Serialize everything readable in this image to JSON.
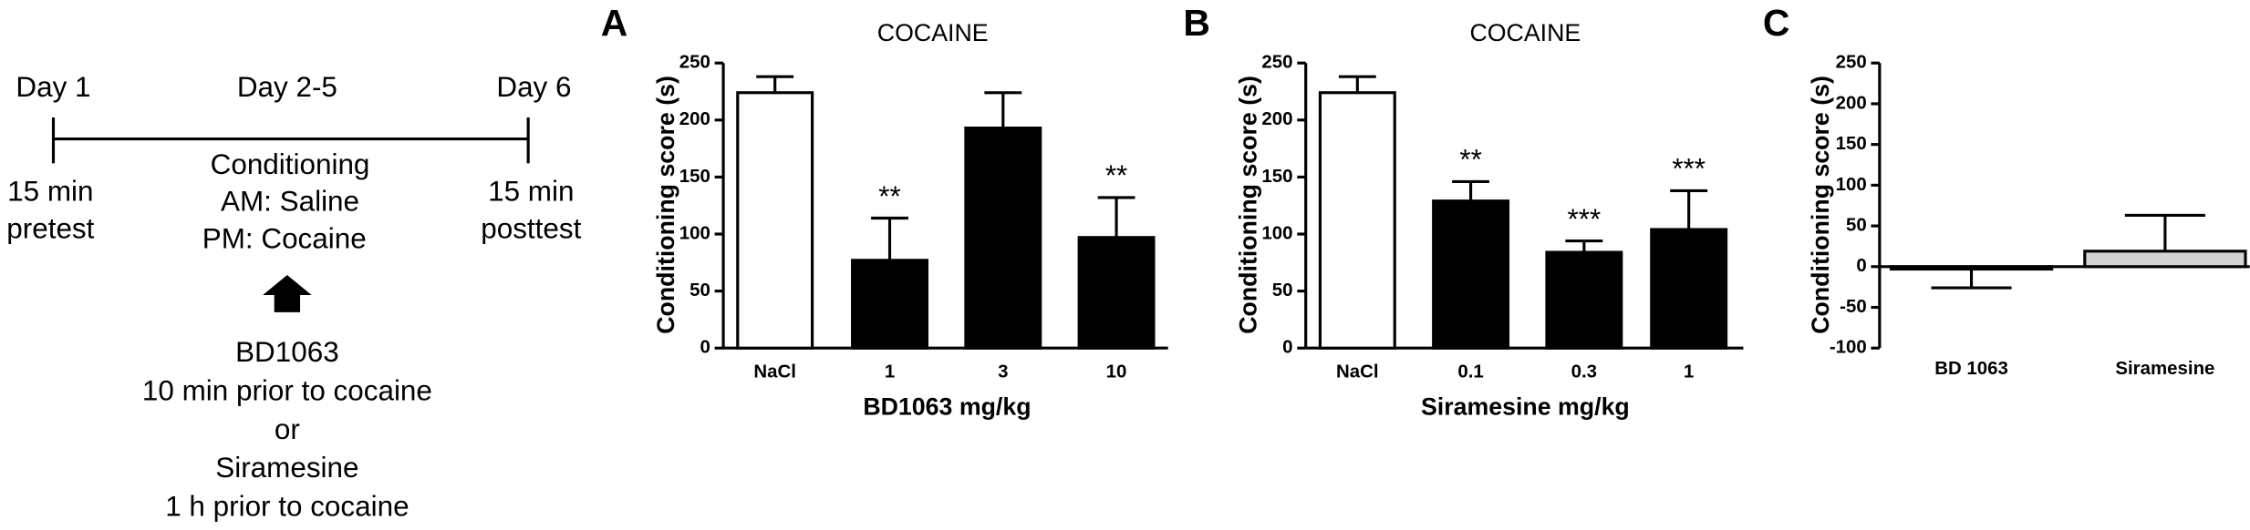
{
  "diagram": {
    "day1": "Day 1",
    "day25": "Day 2-5",
    "day6": "Day 6",
    "pre": [
      "15 min",
      "pretest"
    ],
    "conditioning": [
      "Conditioning",
      "AM: Saline",
      "PM: Cocaine"
    ],
    "post": [
      "15 min",
      "posttest"
    ],
    "drugs": [
      "BD1063",
      "10 min prior to cocaine",
      "or",
      "Siramesine",
      "1 h prior to cocaine"
    ]
  },
  "chart_data": [
    {
      "type": "bar",
      "panel": "A",
      "title": "COCAINE",
      "y_label": "Conditioning score (s)",
      "x_label": "BD1063 mg/kg",
      "categories": [
        "NaCl",
        "1",
        "3",
        "10"
      ],
      "values": [
        224,
        77,
        193,
        97
      ],
      "errors": [
        14,
        37,
        31,
        35
      ],
      "colors": [
        "#ffffff",
        "#000000",
        "#000000",
        "#000000"
      ],
      "significance": [
        null,
        "**",
        null,
        "**"
      ],
      "ylim": [
        0,
        250
      ],
      "yticks": [
        0,
        50,
        100,
        150,
        200,
        250
      ],
      "grid": false
    },
    {
      "type": "bar",
      "panel": "B",
      "title": "COCAINE",
      "y_label": "Conditioning score (s)",
      "x_label": "Siramesine mg/kg",
      "categories": [
        "NaCl",
        "0.1",
        "0.3",
        "1"
      ],
      "values": [
        224,
        129,
        84,
        104
      ],
      "errors": [
        14,
        17,
        10,
        34
      ],
      "colors": [
        "#ffffff",
        "#000000",
        "#000000",
        "#000000"
      ],
      "significance": [
        null,
        "**",
        "***",
        "***"
      ],
      "ylim": [
        0,
        250
      ],
      "yticks": [
        0,
        50,
        100,
        150,
        200,
        250
      ],
      "grid": false
    },
    {
      "type": "bar",
      "panel": "C",
      "y_label": "Conditioning score (s)",
      "categories": [
        "BD 1063",
        "Siramesine"
      ],
      "values": [
        -3,
        19
      ],
      "errors": [
        23,
        44
      ],
      "colors": [
        "#d3d3d3",
        "#d3d3d3"
      ],
      "ylim": [
        -100,
        250
      ],
      "yticks": [
        -100,
        -50,
        0,
        50,
        100,
        150,
        200,
        250
      ],
      "grid": false
    }
  ]
}
